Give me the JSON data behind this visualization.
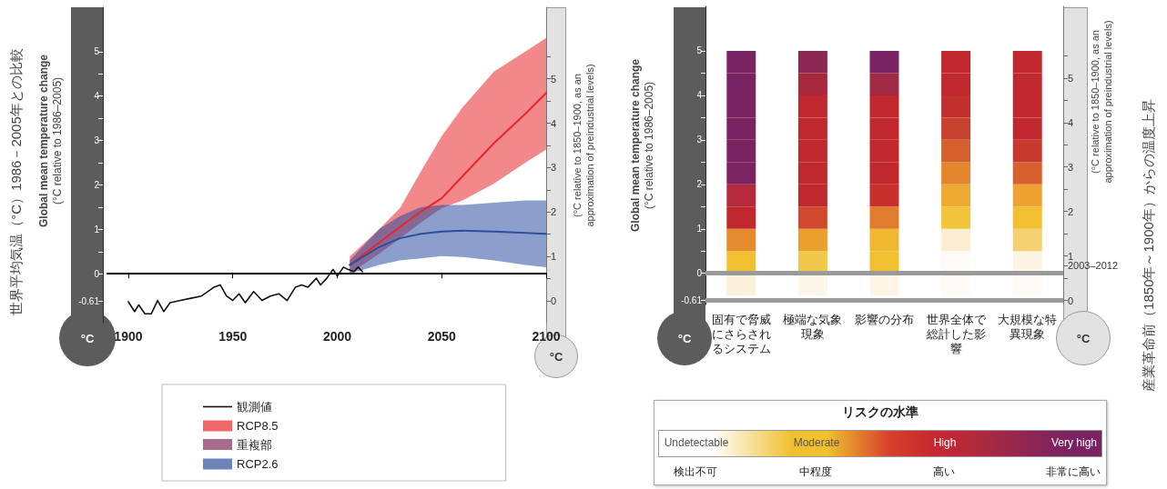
{
  "chart_data": [
    {
      "type": "line",
      "ylabel": "Global mean temperature change\n(°C relative to 1986–2005)",
      "y2label": "(°C relative to 1850–1900, as an\napproximation of preindustrial levels)",
      "xlim": [
        1890,
        2100
      ],
      "xticks": [
        1900,
        1950,
        2000,
        2050,
        2100
      ],
      "ylim": [
        -1.1,
        6
      ],
      "yticks": [
        -0.61,
        0,
        {
          "value": 0.5,
          "label": null
        },
        1,
        {
          "value": 1.5,
          "label": null
        },
        2,
        {
          "value": 2.5,
          "label": null
        },
        3,
        {
          "value": 3.5,
          "label": null
        },
        4,
        {
          "value": 4.5,
          "label": null
        },
        5
      ],
      "y2lim": [
        -0.49,
        6.61
      ],
      "y2ticks": [
        0,
        {
          "value": 0.5,
          "label": null
        },
        1,
        {
          "value": 1.5,
          "label": null
        },
        2,
        {
          "value": 2.5,
          "label": null
        },
        3,
        {
          "value": 3.5,
          "label": null
        },
        4,
        {
          "value": 4.5,
          "label": null
        },
        5,
        {
          "value": 5.5,
          "label": null
        }
      ],
      "legend": "bottom",
      "annotations": [
        "世界平均気温（°C）1986－2005年との比較",
        "°C",
        "°C",
        "重複部"
      ],
      "series": [
        {
          "name": "観測値",
          "color": "#111111",
          "x": [
            1900,
            1903,
            1905,
            1908,
            1911,
            1914,
            1917,
            1920,
            1925,
            1930,
            1935,
            1938,
            1941,
            1944,
            1947,
            1950,
            1953,
            1956,
            1960,
            1964,
            1968,
            1972,
            1976,
            1980,
            1983,
            1986,
            1990,
            1992,
            1995,
            1998,
            2000,
            2003,
            2005,
            2008,
            2010,
            2012
          ],
          "values": [
            -0.63,
            -0.85,
            -0.7,
            -0.9,
            -0.9,
            -0.6,
            -0.85,
            -0.65,
            -0.6,
            -0.55,
            -0.5,
            -0.4,
            -0.3,
            -0.25,
            -0.5,
            -0.6,
            -0.45,
            -0.65,
            -0.4,
            -0.6,
            -0.5,
            -0.45,
            -0.6,
            -0.3,
            -0.25,
            -0.3,
            -0.1,
            -0.25,
            -0.1,
            0.1,
            -0.05,
            0.15,
            0.1,
            0.05,
            0.15,
            0.05
          ]
        },
        {
          "name": "RCP8.5",
          "color": "#e8262a",
          "x": [
            2006,
            2020,
            2030,
            2040,
            2050,
            2060,
            2075,
            2090,
            2100
          ],
          "values": [
            0.2,
            0.7,
            1.05,
            1.4,
            1.7,
            2.2,
            2.94,
            3.6,
            4.07
          ],
          "lower": [
            0.0,
            0.45,
            0.8,
            1.15,
            1.48,
            1.65,
            2.03,
            2.5,
            2.8
          ],
          "upper": [
            0.39,
            1.0,
            1.48,
            2.3,
            3.1,
            3.75,
            4.55,
            5.0,
            5.31
          ]
        },
        {
          "name": "RCP2.6",
          "color": "#2d4fa0",
          "x": [
            2006,
            2020,
            2030,
            2040,
            2050,
            2060,
            2075,
            2090,
            2100
          ],
          "values": [
            0.2,
            0.6,
            0.8,
            0.9,
            0.95,
            0.97,
            0.95,
            0.92,
            0.9
          ],
          "lower": [
            0.0,
            0.2,
            0.3,
            0.35,
            0.4,
            0.38,
            0.3,
            0.2,
            0.15
          ],
          "upper": [
            0.3,
            1.0,
            1.3,
            1.5,
            1.55,
            1.55,
            1.6,
            1.65,
            1.65
          ]
        }
      ]
    },
    {
      "type": "bar",
      "stacked": true,
      "ylabel": "Global mean temperature change\n(°C relative to 1986–2005)",
      "y2label": "(°C relative to 1850–1900, as an\napproximation of preindustrial levels)",
      "categories": [
        "固有で脅威にさらされるシステム",
        "極端な気象現象",
        "影響の分布",
        "世界全体で総計した影響",
        "大規模な特異現象"
      ],
      "ylim": [
        -0.7,
        6
      ],
      "yticks": [
        -0.61,
        0,
        {
          "value": 0.5,
          "label": null
        },
        1,
        {
          "value": 1.5,
          "label": null
        },
        2,
        {
          "value": 2.5,
          "label": null
        },
        3,
        {
          "value": 3.5,
          "label": null
        },
        4,
        {
          "value": 4.5,
          "label": null
        },
        5
      ],
      "y2lim": [
        -0.09,
        6.61
      ],
      "y2ticks": [
        0,
        {
          "value": 0.5,
          "label": null
        },
        {
          "value": 0.78,
          "label": "2003–2012"
        },
        1,
        {
          "value": 1.5,
          "label": null
        },
        2,
        {
          "value": 2.5,
          "label": null
        },
        3,
        {
          "value": 3.5,
          "label": null
        },
        4,
        {
          "value": 4.5,
          "label": null
        },
        5,
        {
          "value": 5.5,
          "label": null
        }
      ],
      "ref_lines": [
        {
          "axis": "y",
          "value": 0,
          "label": null,
          "color": "#9a9a9a"
        },
        {
          "axis": "y",
          "value": -0.61,
          "label": null,
          "color": "#9a9a9a"
        }
      ],
      "legend_title": "リスクの水準",
      "annotations": [
        "産業革命前（1850年～1900年）からの温度上昇",
        "°C",
        "°C",
        "Undetectable",
        "Moderate",
        "High",
        "Very high",
        "検出不可",
        "中程度",
        "高い",
        "非常に高い"
      ],
      "series": [
        {
          "values": [
            -0.5,
            -0.5,
            -0.5,
            -0.5,
            -0.5
          ],
          "colors": [
            "#fbf0dc",
            "#fdf6ea",
            "#fdf4e6",
            "#fefbf6",
            "#fefbf6"
          ]
        },
        {
          "values": [
            0.5,
            0.5,
            0.5,
            0.5,
            0.5
          ],
          "colors": [
            "#f0c030",
            "#f1c84a",
            "#f0c030",
            "#fefbf6",
            "#fcf3e2"
          ]
        },
        {
          "values": [
            0.5,
            0.5,
            0.5,
            0.5,
            0.5
          ],
          "colors": [
            "#e58a2e",
            "#eba02e",
            "#f0b830",
            "#fbeed0",
            "#f4d070"
          ]
        },
        {
          "values": [
            0.5,
            0.5,
            0.5,
            0.5,
            0.5
          ],
          "colors": [
            "#c0282e",
            "#d0482e",
            "#e07c2e",
            "#f2c43a",
            "#f0c030"
          ]
        },
        {
          "values": [
            0.5,
            0.5,
            0.5,
            0.5,
            0.5
          ],
          "colors": [
            "#b52a3a",
            "#c0282e",
            "#c8302e",
            "#edaa32",
            "#eda232"
          ]
        },
        {
          "values": [
            0.5,
            0.5,
            0.5,
            0.5,
            0.5
          ],
          "colors": [
            "#7c2461",
            "#c0282e",
            "#c0282e",
            "#e3862e",
            "#d8602e"
          ]
        },
        {
          "values": [
            0.5,
            0.5,
            0.5,
            0.5,
            0.5
          ],
          "colors": [
            "#7a2362",
            "#c0282e",
            "#c0282e",
            "#d4602e",
            "#c8382e"
          ]
        },
        {
          "values": [
            0.5,
            0.5,
            0.5,
            0.5,
            0.5
          ],
          "colors": [
            "#7a2362",
            "#c0282e",
            "#c0282e",
            "#c8402e",
            "#c0282e"
          ]
        },
        {
          "values": [
            0.5,
            0.5,
            0.5,
            0.5,
            0.5
          ],
          "colors": [
            "#7a2362",
            "#c0282e",
            "#c0282e",
            "#c0302e",
            "#c0282e"
          ]
        },
        {
          "values": [
            0.5,
            0.5,
            0.5,
            0.5,
            0.5
          ],
          "colors": [
            "#7a2362",
            "#a8283e",
            "#a02a44",
            "#c0282e",
            "#c0282e"
          ]
        },
        {
          "values": [
            0.5,
            0.5,
            0.5,
            0.5,
            0.5
          ],
          "colors": [
            "#7a2362",
            "#8c2652",
            "#7a2362",
            "#c0282e",
            "#c0282e"
          ]
        }
      ]
    }
  ]
}
